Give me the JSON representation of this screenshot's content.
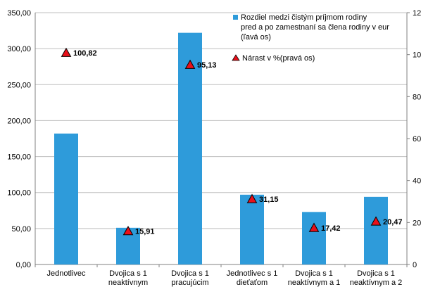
{
  "chart_data": {
    "type": "bar",
    "categories": [
      [
        "Jednotlivec"
      ],
      [
        "Dvojica s 1",
        "neaktívnym"
      ],
      [
        "Dvojica s 1",
        "pracujúcim"
      ],
      [
        "Jednotlivec s 1",
        "dieťaťom"
      ],
      [
        "Dvojica s 1",
        "neaktívnym a 1"
      ],
      [
        "Dvojica s 1",
        "neaktívnym a 2"
      ]
    ],
    "series": [
      {
        "name_lines": [
          "Rozdiel medzi čistým príjmom rodiny",
          "pred a po zamestnaní sa člena rodiny v eur",
          "(ľavá os)"
        ],
        "type": "bar",
        "axis": "left",
        "color": "#2E9BDA",
        "values": [
          182,
          51,
          322,
          97,
          73,
          94
        ]
      },
      {
        "name_lines": [
          "Nárast v %(pravá os)"
        ],
        "type": "marker",
        "axis": "right",
        "color": "#E8101A",
        "values": [
          100.82,
          15.91,
          95.13,
          31.15,
          17.42,
          20.47
        ],
        "labels": [
          "100,82",
          "15,91",
          "95,13",
          "31,15",
          "17,42",
          "20,47"
        ]
      }
    ],
    "y_left": {
      "min": 0,
      "max": 350,
      "ticks": [
        0,
        50,
        100,
        150,
        200,
        250,
        300,
        350
      ],
      "tick_labels": [
        "0,00",
        "50,00",
        "100,00",
        "150,00",
        "200,00",
        "250,00",
        "300,00",
        "350,00"
      ]
    },
    "y_right": {
      "min": 0,
      "max": 120,
      "ticks": [
        0,
        20,
        40,
        60,
        80,
        100,
        120
      ],
      "tick_labels": [
        "0",
        "20",
        "40",
        "60",
        "80",
        "100",
        "120"
      ]
    },
    "grid": "horizontal",
    "legend_position": "top-right",
    "title": "",
    "xlabel": "",
    "ylabel": ""
  }
}
